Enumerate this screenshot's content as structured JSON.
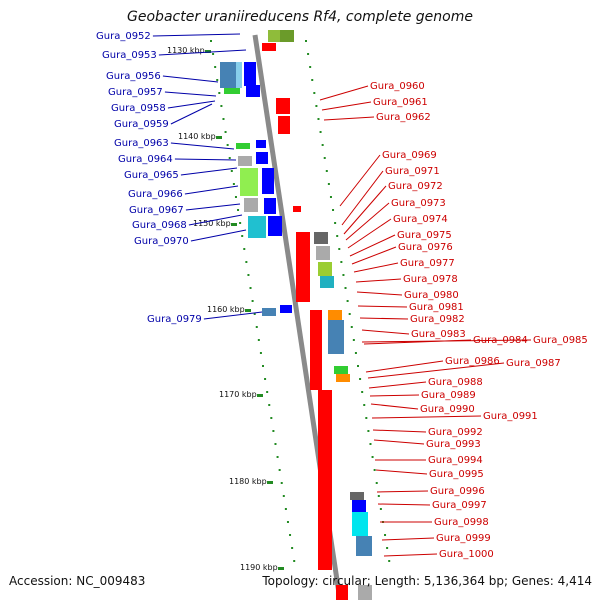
{
  "title": "Geobacter uraniireducens Rf4, complete genome",
  "footer": {
    "accession": "Accession: NC_009483",
    "summary": "Topology: circular; Length: 5,136,364 bp; Genes: 4,414"
  },
  "colors": {
    "left_label": "#0000a8",
    "right_label": "#cc0000",
    "backbone": "#888888",
    "minus_strand": "#ff0000",
    "plus_strand": "#0000ff"
  },
  "ticks": [
    "1130 kbp",
    "1140 kbp",
    "1150 kbp",
    "1160 kbp",
    "1170 kbp",
    "1180 kbp",
    "1190 kbp"
  ],
  "left_genes": [
    "Gura_0952",
    "Gura_0953",
    "Gura_0956",
    "Gura_0957",
    "Gura_0958",
    "Gura_0959",
    "Gura_0963",
    "Gura_0964",
    "Gura_0965",
    "Gura_0966",
    "Gura_0967",
    "Gura_0968",
    "Gura_0970",
    "Gura_0979"
  ],
  "right_genes": [
    "Gura_0960",
    "Gura_0961",
    "Gura_0962",
    "Gura_0969",
    "Gura_0971",
    "Gura_0972",
    "Gura_0973",
    "Gura_0974",
    "Gura_0975",
    "Gura_0976",
    "Gura_0977",
    "Gura_0978",
    "Gura_0980",
    "Gura_0981",
    "Gura_0982",
    "Gura_0983",
    "Gura_0984",
    "Gura_0985",
    "Gura_0986",
    "Gura_0987",
    "Gura_0988",
    "Gura_0989",
    "Gura_0990",
    "Gura_0991",
    "Gura_0992",
    "Gura_0993",
    "Gura_0994",
    "Gura_0995",
    "Gura_0996",
    "Gura_0997",
    "Gura_0998",
    "Gura_0999",
    "Gura_1000"
  ]
}
